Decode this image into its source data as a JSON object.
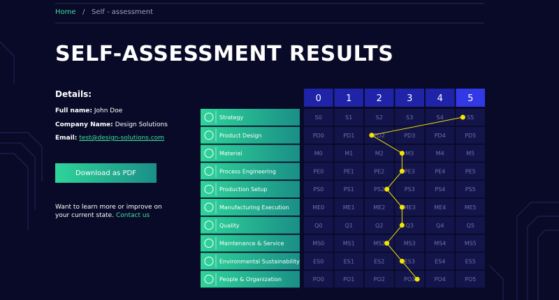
{
  "breadcrumb": {
    "home": "Home",
    "separator": "/",
    "current": "Self - assessment"
  },
  "title": "SELF-ASSESSMENT RESULTS",
  "details": {
    "heading": "Details:",
    "full_name": {
      "label": "Full name:",
      "value": "John Doe"
    },
    "company": {
      "label": "Company Name:",
      "value": "Design Solutions"
    },
    "email": {
      "label": "Email:",
      "value": "test@design-solutions.com"
    }
  },
  "download_button": "Download as PDF",
  "footer": {
    "text": "Want to learn more or improve on your current state.",
    "link": "Contact us"
  },
  "assessment": {
    "levels": [
      0,
      1,
      2,
      3,
      4,
      5
    ],
    "rows": [
      {
        "label": "Strategy",
        "cells": [
          "S0",
          "S1",
          "S2",
          "S3",
          "S4",
          "S5"
        ],
        "score": 4.75
      },
      {
        "label": "Product Design",
        "cells": [
          "PD0",
          "PD1",
          "PD2",
          "PD3",
          "PD4",
          "PD5"
        ],
        "score": 1.75
      },
      {
        "label": "Material",
        "cells": [
          "M0",
          "M1",
          "M2",
          "M3",
          "M4",
          "M5"
        ],
        "score": 2.75
      },
      {
        "label": "Process Engineering",
        "cells": [
          "PE0",
          "PE1",
          "PE2",
          "PE3",
          "PE4",
          "PE5"
        ],
        "score": 2.75
      },
      {
        "label": "Production Setup",
        "cells": [
          "PS0",
          "PS1",
          "PS2",
          "PS3",
          "PS4",
          "PS5"
        ],
        "score": 2.25
      },
      {
        "label": "Manufacturing Execution",
        "cells": [
          "ME0",
          "ME1",
          "ME2",
          "ME3",
          "ME4",
          "ME5"
        ],
        "score": 2.75
      },
      {
        "label": "Quality",
        "cells": [
          "Q0",
          "Q1",
          "Q2",
          "Q3",
          "Q4",
          "Q5"
        ],
        "score": 2.75
      },
      {
        "label": "Maintenance & Service",
        "cells": [
          "MS0",
          "MS1",
          "MS2",
          "MS3",
          "MS4",
          "MS5"
        ],
        "score": 2.25
      },
      {
        "label": "Environmental Sustainability",
        "cells": [
          "ES0",
          "ES1",
          "ES2",
          "ES3",
          "ES4",
          "ES5"
        ],
        "score": 2.75
      },
      {
        "label": "People & Organization",
        "cells": [
          "PO0",
          "PO1",
          "PO2",
          "PO3",
          "PO4",
          "PO5"
        ],
        "score": 3.25
      }
    ]
  }
}
